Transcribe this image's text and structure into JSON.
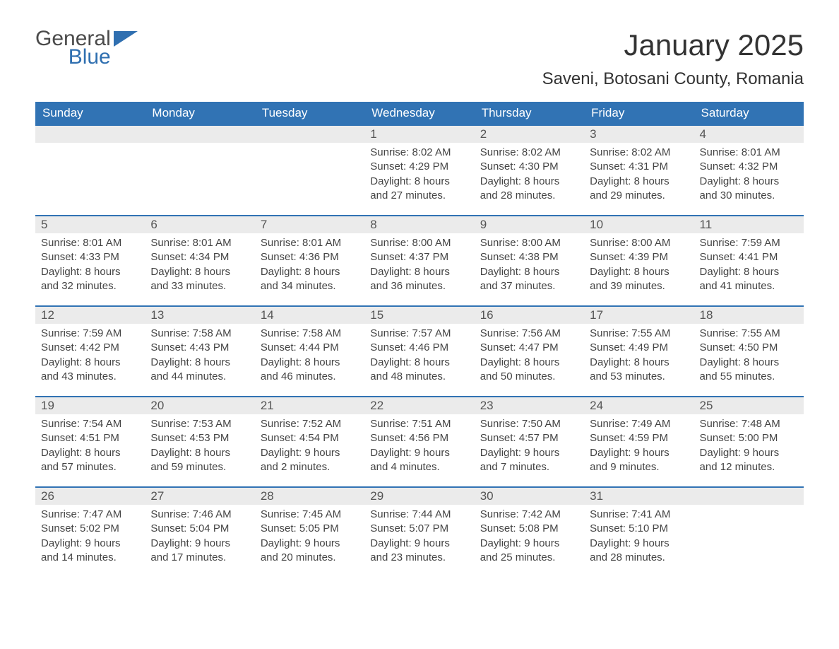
{
  "branding": {
    "logo_word1": "General",
    "logo_word2": "Blue",
    "logo_color_text": "#4a4a4a",
    "logo_color_accent": "#2f6fb0"
  },
  "header": {
    "month_title": "January 2025",
    "location": "Saveni, Botosani County, Romania"
  },
  "styling": {
    "header_bg": "#3173b4",
    "header_text": "#ffffff",
    "daynum_bg": "#ebebeb",
    "daynum_text": "#555555",
    "cell_border_top": "#3173b4",
    "page_bg": "#ffffff",
    "body_text": "#444444",
    "th_fontsize": 17,
    "daynum_fontsize": 17,
    "body_fontsize": 15,
    "title_fontsize": 42,
    "location_fontsize": 24
  },
  "columns": [
    "Sunday",
    "Monday",
    "Tuesday",
    "Wednesday",
    "Thursday",
    "Friday",
    "Saturday"
  ],
  "weeks": [
    [
      {
        "day": "",
        "sunrise": "",
        "sunset": "",
        "daylight": "",
        "empty": true
      },
      {
        "day": "",
        "sunrise": "",
        "sunset": "",
        "daylight": "",
        "empty": true
      },
      {
        "day": "",
        "sunrise": "",
        "sunset": "",
        "daylight": "",
        "empty": true
      },
      {
        "day": "1",
        "sunrise": "Sunrise: 8:02 AM",
        "sunset": "Sunset: 4:29 PM",
        "daylight": "Daylight: 8 hours and 27 minutes."
      },
      {
        "day": "2",
        "sunrise": "Sunrise: 8:02 AM",
        "sunset": "Sunset: 4:30 PM",
        "daylight": "Daylight: 8 hours and 28 minutes."
      },
      {
        "day": "3",
        "sunrise": "Sunrise: 8:02 AM",
        "sunset": "Sunset: 4:31 PM",
        "daylight": "Daylight: 8 hours and 29 minutes."
      },
      {
        "day": "4",
        "sunrise": "Sunrise: 8:01 AM",
        "sunset": "Sunset: 4:32 PM",
        "daylight": "Daylight: 8 hours and 30 minutes."
      }
    ],
    [
      {
        "day": "5",
        "sunrise": "Sunrise: 8:01 AM",
        "sunset": "Sunset: 4:33 PM",
        "daylight": "Daylight: 8 hours and 32 minutes."
      },
      {
        "day": "6",
        "sunrise": "Sunrise: 8:01 AM",
        "sunset": "Sunset: 4:34 PM",
        "daylight": "Daylight: 8 hours and 33 minutes."
      },
      {
        "day": "7",
        "sunrise": "Sunrise: 8:01 AM",
        "sunset": "Sunset: 4:36 PM",
        "daylight": "Daylight: 8 hours and 34 minutes."
      },
      {
        "day": "8",
        "sunrise": "Sunrise: 8:00 AM",
        "sunset": "Sunset: 4:37 PM",
        "daylight": "Daylight: 8 hours and 36 minutes."
      },
      {
        "day": "9",
        "sunrise": "Sunrise: 8:00 AM",
        "sunset": "Sunset: 4:38 PM",
        "daylight": "Daylight: 8 hours and 37 minutes."
      },
      {
        "day": "10",
        "sunrise": "Sunrise: 8:00 AM",
        "sunset": "Sunset: 4:39 PM",
        "daylight": "Daylight: 8 hours and 39 minutes."
      },
      {
        "day": "11",
        "sunrise": "Sunrise: 7:59 AM",
        "sunset": "Sunset: 4:41 PM",
        "daylight": "Daylight: 8 hours and 41 minutes."
      }
    ],
    [
      {
        "day": "12",
        "sunrise": "Sunrise: 7:59 AM",
        "sunset": "Sunset: 4:42 PM",
        "daylight": "Daylight: 8 hours and 43 minutes."
      },
      {
        "day": "13",
        "sunrise": "Sunrise: 7:58 AM",
        "sunset": "Sunset: 4:43 PM",
        "daylight": "Daylight: 8 hours and 44 minutes."
      },
      {
        "day": "14",
        "sunrise": "Sunrise: 7:58 AM",
        "sunset": "Sunset: 4:44 PM",
        "daylight": "Daylight: 8 hours and 46 minutes."
      },
      {
        "day": "15",
        "sunrise": "Sunrise: 7:57 AM",
        "sunset": "Sunset: 4:46 PM",
        "daylight": "Daylight: 8 hours and 48 minutes."
      },
      {
        "day": "16",
        "sunrise": "Sunrise: 7:56 AM",
        "sunset": "Sunset: 4:47 PM",
        "daylight": "Daylight: 8 hours and 50 minutes."
      },
      {
        "day": "17",
        "sunrise": "Sunrise: 7:55 AM",
        "sunset": "Sunset: 4:49 PM",
        "daylight": "Daylight: 8 hours and 53 minutes."
      },
      {
        "day": "18",
        "sunrise": "Sunrise: 7:55 AM",
        "sunset": "Sunset: 4:50 PM",
        "daylight": "Daylight: 8 hours and 55 minutes."
      }
    ],
    [
      {
        "day": "19",
        "sunrise": "Sunrise: 7:54 AM",
        "sunset": "Sunset: 4:51 PM",
        "daylight": "Daylight: 8 hours and 57 minutes."
      },
      {
        "day": "20",
        "sunrise": "Sunrise: 7:53 AM",
        "sunset": "Sunset: 4:53 PM",
        "daylight": "Daylight: 8 hours and 59 minutes."
      },
      {
        "day": "21",
        "sunrise": "Sunrise: 7:52 AM",
        "sunset": "Sunset: 4:54 PM",
        "daylight": "Daylight: 9 hours and 2 minutes."
      },
      {
        "day": "22",
        "sunrise": "Sunrise: 7:51 AM",
        "sunset": "Sunset: 4:56 PM",
        "daylight": "Daylight: 9 hours and 4 minutes."
      },
      {
        "day": "23",
        "sunrise": "Sunrise: 7:50 AM",
        "sunset": "Sunset: 4:57 PM",
        "daylight": "Daylight: 9 hours and 7 minutes."
      },
      {
        "day": "24",
        "sunrise": "Sunrise: 7:49 AM",
        "sunset": "Sunset: 4:59 PM",
        "daylight": "Daylight: 9 hours and 9 minutes."
      },
      {
        "day": "25",
        "sunrise": "Sunrise: 7:48 AM",
        "sunset": "Sunset: 5:00 PM",
        "daylight": "Daylight: 9 hours and 12 minutes."
      }
    ],
    [
      {
        "day": "26",
        "sunrise": "Sunrise: 7:47 AM",
        "sunset": "Sunset: 5:02 PM",
        "daylight": "Daylight: 9 hours and 14 minutes."
      },
      {
        "day": "27",
        "sunrise": "Sunrise: 7:46 AM",
        "sunset": "Sunset: 5:04 PM",
        "daylight": "Daylight: 9 hours and 17 minutes."
      },
      {
        "day": "28",
        "sunrise": "Sunrise: 7:45 AM",
        "sunset": "Sunset: 5:05 PM",
        "daylight": "Daylight: 9 hours and 20 minutes."
      },
      {
        "day": "29",
        "sunrise": "Sunrise: 7:44 AM",
        "sunset": "Sunset: 5:07 PM",
        "daylight": "Daylight: 9 hours and 23 minutes."
      },
      {
        "day": "30",
        "sunrise": "Sunrise: 7:42 AM",
        "sunset": "Sunset: 5:08 PM",
        "daylight": "Daylight: 9 hours and 25 minutes."
      },
      {
        "day": "31",
        "sunrise": "Sunrise: 7:41 AM",
        "sunset": "Sunset: 5:10 PM",
        "daylight": "Daylight: 9 hours and 28 minutes."
      },
      {
        "day": "",
        "sunrise": "",
        "sunset": "",
        "daylight": "",
        "empty": true
      }
    ]
  ]
}
